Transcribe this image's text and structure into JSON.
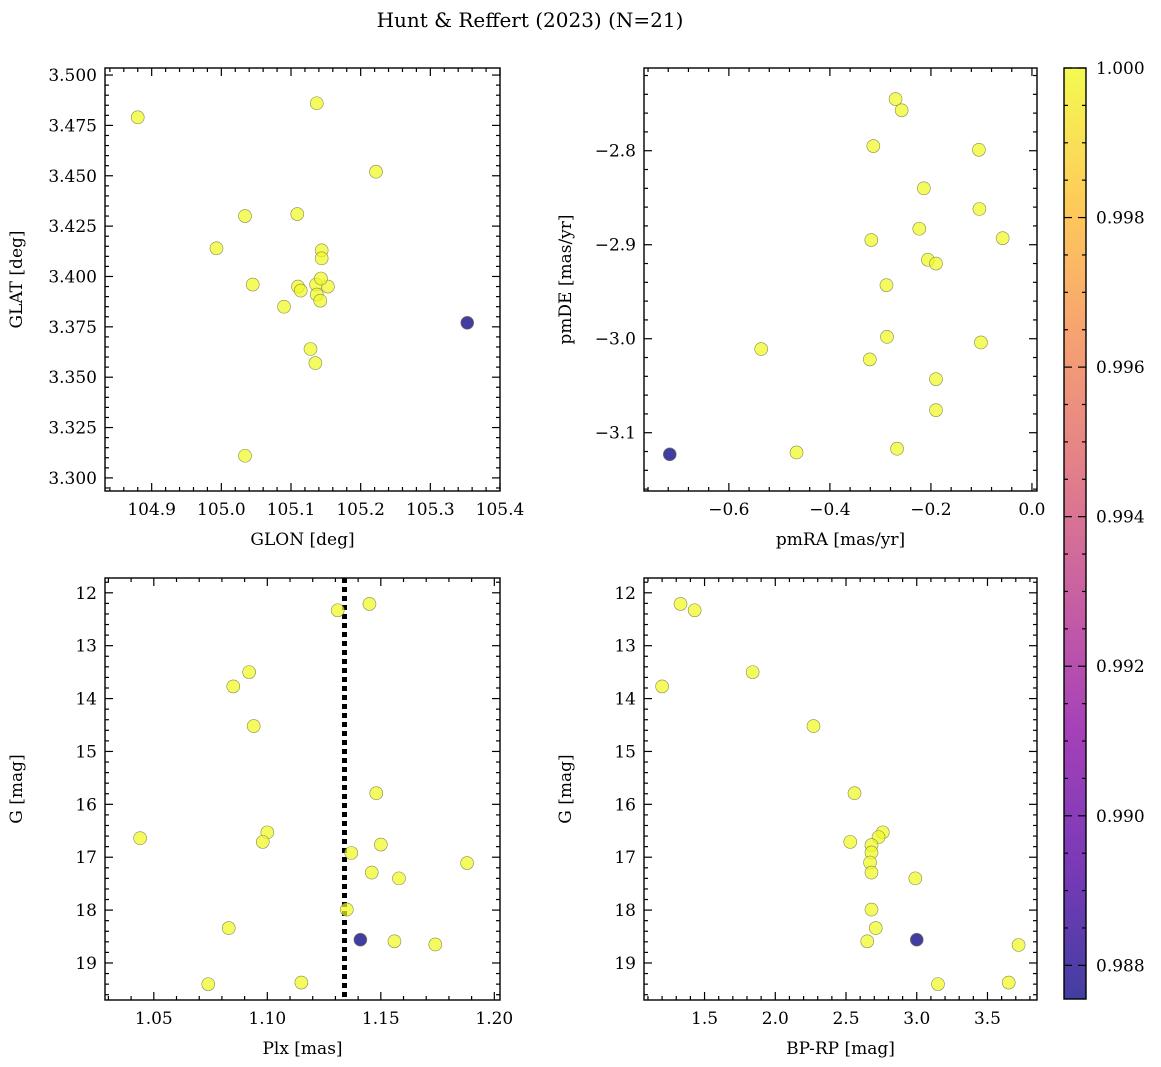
{
  "figure": {
    "title": "Hunt & Reffert (2023) (N=21)"
  },
  "colorbar": {
    "min": 0.98755,
    "max": 1.0,
    "ticks": [
      0.988,
      0.99,
      0.992,
      0.994,
      0.996,
      0.998,
      1.0
    ],
    "tick_labels": [
      "0.988",
      "0.990",
      "0.992",
      "0.994",
      "0.996",
      "0.998",
      "1.000"
    ],
    "colors": [
      "#0d0887",
      "#5302a3",
      "#8b0aa5",
      "#b83289",
      "#db5c68",
      "#f48849",
      "#febd2a",
      "#f0f921"
    ]
  },
  "chart_data": [
    {
      "type": "scatter",
      "xlabel": "GLON [deg]",
      "ylabel": "GLAT [deg]",
      "xlim": [
        104.833,
        105.4
      ],
      "ylim": [
        3.2935,
        3.5035
      ],
      "y_inverted": false,
      "xticks": [
        104.9,
        105.0,
        105.1,
        105.2,
        105.3,
        105.4
      ],
      "xtick_labels": [
        "104.9",
        "105.0",
        "105.1",
        "105.2",
        "105.3",
        "105.4"
      ],
      "yticks": [
        3.3,
        3.325,
        3.35,
        3.375,
        3.4,
        3.425,
        3.45,
        3.475,
        3.5
      ],
      "ytick_labels": [
        "3.300",
        "3.325",
        "3.350",
        "3.375",
        "3.400",
        "3.425",
        "3.450",
        "3.475",
        "3.500"
      ],
      "vline": null,
      "points": [
        {
          "x": 104.88,
          "y": 3.479,
          "c": 1.0
        },
        {
          "x": 105.137,
          "y": 3.486,
          "c": 1.0
        },
        {
          "x": 105.222,
          "y": 3.452,
          "c": 1.0
        },
        {
          "x": 105.034,
          "y": 3.43,
          "c": 1.0
        },
        {
          "x": 105.109,
          "y": 3.431,
          "c": 1.0
        },
        {
          "x": 104.993,
          "y": 3.414,
          "c": 1.0
        },
        {
          "x": 105.144,
          "y": 3.413,
          "c": 1.0
        },
        {
          "x": 105.144,
          "y": 3.409,
          "c": 1.0
        },
        {
          "x": 105.045,
          "y": 3.396,
          "c": 1.0
        },
        {
          "x": 105.11,
          "y": 3.395,
          "c": 1.0
        },
        {
          "x": 105.136,
          "y": 3.396,
          "c": 1.0
        },
        {
          "x": 105.153,
          "y": 3.395,
          "c": 1.0
        },
        {
          "x": 105.114,
          "y": 3.393,
          "c": 1.0
        },
        {
          "x": 105.137,
          "y": 3.391,
          "c": 1.0
        },
        {
          "x": 105.142,
          "y": 3.388,
          "c": 1.0
        },
        {
          "x": 105.09,
          "y": 3.385,
          "c": 1.0
        },
        {
          "x": 105.128,
          "y": 3.364,
          "c": 1.0
        },
        {
          "x": 105.135,
          "y": 3.357,
          "c": 1.0
        },
        {
          "x": 105.034,
          "y": 3.311,
          "c": 1.0
        },
        {
          "x": 105.143,
          "y": 3.399,
          "c": 1.0
        },
        {
          "x": 105.353,
          "y": 3.377,
          "c": 0.98755
        }
      ]
    },
    {
      "type": "scatter",
      "xlabel": "pmRA [mas/yr]",
      "ylabel": "pmDE [mas/yr]",
      "xlim": [
        -0.768,
        0.01
      ],
      "ylim": [
        -3.162,
        -2.712
      ],
      "y_inverted": false,
      "xticks": [
        -0.6,
        -0.4,
        -0.2,
        0.0
      ],
      "xtick_labels": [
        "−0.6",
        "−0.4",
        "−0.2",
        "0.0"
      ],
      "yticks": [
        -3.1,
        -3.0,
        -2.9,
        -2.8
      ],
      "ytick_labels": [
        "−3.1",
        "−3.0",
        "−2.9",
        "−2.8"
      ],
      "vline": null,
      "points": [
        {
          "x": -0.27,
          "y": -2.745,
          "c": 1.0
        },
        {
          "x": -0.258,
          "y": -2.757,
          "c": 1.0
        },
        {
          "x": -0.314,
          "y": -2.795,
          "c": 1.0
        },
        {
          "x": -0.105,
          "y": -2.799,
          "c": 1.0
        },
        {
          "x": -0.214,
          "y": -2.84,
          "c": 1.0
        },
        {
          "x": -0.104,
          "y": -2.862,
          "c": 1.0
        },
        {
          "x": -0.223,
          "y": -2.883,
          "c": 1.0
        },
        {
          "x": -0.318,
          "y": -2.895,
          "c": 1.0
        },
        {
          "x": -0.058,
          "y": -2.893,
          "c": 1.0
        },
        {
          "x": -0.206,
          "y": -2.916,
          "c": 1.0
        },
        {
          "x": -0.19,
          "y": -2.92,
          "c": 1.0
        },
        {
          "x": -0.288,
          "y": -2.943,
          "c": 1.0
        },
        {
          "x": -0.287,
          "y": -2.998,
          "c": 1.0
        },
        {
          "x": -0.101,
          "y": -3.004,
          "c": 1.0
        },
        {
          "x": -0.536,
          "y": -3.011,
          "c": 1.0
        },
        {
          "x": -0.321,
          "y": -3.022,
          "c": 1.0
        },
        {
          "x": -0.19,
          "y": -3.043,
          "c": 1.0
        },
        {
          "x": -0.19,
          "y": -3.076,
          "c": 1.0
        },
        {
          "x": -0.267,
          "y": -3.117,
          "c": 1.0
        },
        {
          "x": -0.466,
          "y": -3.121,
          "c": 1.0
        },
        {
          "x": -0.717,
          "y": -3.123,
          "c": 0.98755
        }
      ]
    },
    {
      "type": "scatter",
      "xlabel": "Plx [mas]",
      "ylabel": "G [mag]",
      "xlim": [
        1.0285,
        1.2025
      ],
      "ylim": [
        11.72,
        19.7
      ],
      "y_inverted": true,
      "xticks": [
        1.05,
        1.1,
        1.15,
        1.2
      ],
      "xtick_labels": [
        "1.05",
        "1.10",
        "1.15",
        "1.20"
      ],
      "yticks": [
        12,
        13,
        14,
        15,
        16,
        17,
        18,
        19
      ],
      "ytick_labels": [
        "12",
        "13",
        "14",
        "15",
        "16",
        "17",
        "18",
        "19"
      ],
      "vline": 1.134,
      "points": [
        {
          "x": 1.131,
          "y": 12.33,
          "c": 1.0
        },
        {
          "x": 1.145,
          "y": 12.21,
          "c": 1.0
        },
        {
          "x": 1.092,
          "y": 13.5,
          "c": 1.0
        },
        {
          "x": 1.085,
          "y": 13.77,
          "c": 1.0
        },
        {
          "x": 1.094,
          "y": 14.52,
          "c": 1.0
        },
        {
          "x": 1.148,
          "y": 15.79,
          "c": 1.0
        },
        {
          "x": 1.044,
          "y": 16.64,
          "c": 1.0
        },
        {
          "x": 1.1,
          "y": 16.53,
          "c": 1.0
        },
        {
          "x": 1.098,
          "y": 16.71,
          "c": 1.0
        },
        {
          "x": 1.15,
          "y": 16.76,
          "c": 1.0
        },
        {
          "x": 1.137,
          "y": 16.92,
          "c": 1.0
        },
        {
          "x": 1.188,
          "y": 17.11,
          "c": 1.0
        },
        {
          "x": 1.146,
          "y": 17.29,
          "c": 1.0
        },
        {
          "x": 1.158,
          "y": 17.4,
          "c": 1.0
        },
        {
          "x": 1.135,
          "y": 17.99,
          "c": 1.0
        },
        {
          "x": 1.083,
          "y": 18.34,
          "c": 1.0
        },
        {
          "x": 1.156,
          "y": 18.59,
          "c": 1.0
        },
        {
          "x": 1.174,
          "y": 18.65,
          "c": 1.0
        },
        {
          "x": 1.074,
          "y": 19.4,
          "c": 1.0
        },
        {
          "x": 1.115,
          "y": 19.37,
          "c": 1.0
        },
        {
          "x": 1.141,
          "y": 18.56,
          "c": 0.98755
        }
      ]
    },
    {
      "type": "scatter",
      "xlabel": "BP-RP [mag]",
      "ylabel": "G [mag]",
      "xlim": [
        1.072,
        3.85
      ],
      "ylim": [
        11.72,
        19.7
      ],
      "y_inverted": true,
      "xticks": [
        1.5,
        2.0,
        2.5,
        3.0,
        3.5
      ],
      "xtick_labels": [
        "1.5",
        "2.0",
        "2.5",
        "3.0",
        "3.5"
      ],
      "yticks": [
        12,
        13,
        14,
        15,
        16,
        17,
        18,
        19
      ],
      "ytick_labels": [
        "12",
        "13",
        "14",
        "15",
        "16",
        "17",
        "18",
        "19"
      ],
      "vline": null,
      "points": [
        {
          "x": 1.33,
          "y": 12.21,
          "c": 1.0
        },
        {
          "x": 1.43,
          "y": 12.33,
          "c": 1.0
        },
        {
          "x": 1.84,
          "y": 13.5,
          "c": 1.0
        },
        {
          "x": 1.2,
          "y": 13.77,
          "c": 1.0
        },
        {
          "x": 2.27,
          "y": 14.52,
          "c": 1.0
        },
        {
          "x": 2.56,
          "y": 15.79,
          "c": 1.0
        },
        {
          "x": 2.76,
          "y": 16.53,
          "c": 1.0
        },
        {
          "x": 2.53,
          "y": 16.71,
          "c": 1.0
        },
        {
          "x": 2.73,
          "y": 16.62,
          "c": 1.0
        },
        {
          "x": 2.68,
          "y": 16.77,
          "c": 1.0
        },
        {
          "x": 2.68,
          "y": 16.91,
          "c": 1.0
        },
        {
          "x": 2.67,
          "y": 17.1,
          "c": 1.0
        },
        {
          "x": 2.68,
          "y": 17.29,
          "c": 1.0
        },
        {
          "x": 2.99,
          "y": 17.4,
          "c": 1.0
        },
        {
          "x": 2.68,
          "y": 17.99,
          "c": 1.0
        },
        {
          "x": 2.71,
          "y": 18.34,
          "c": 1.0
        },
        {
          "x": 2.65,
          "y": 18.59,
          "c": 1.0
        },
        {
          "x": 3.72,
          "y": 18.66,
          "c": 1.0
        },
        {
          "x": 3.65,
          "y": 19.37,
          "c": 1.0
        },
        {
          "x": 3.15,
          "y": 19.4,
          "c": 1.0
        },
        {
          "x": 3.0,
          "y": 18.56,
          "c": 0.98755
        }
      ]
    }
  ]
}
